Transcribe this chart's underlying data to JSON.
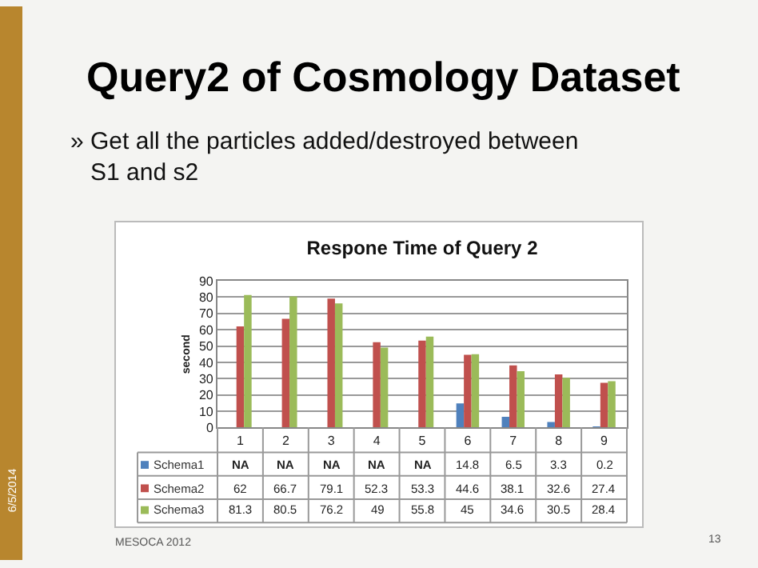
{
  "chart_data": {
    "type": "bar",
    "title": "Respone Time of Query 2",
    "ylabel": "second",
    "categories": [
      "1",
      "2",
      "3",
      "4",
      "5",
      "6",
      "7",
      "8",
      "9"
    ],
    "series": [
      {
        "name": "Schema1",
        "color": "#4f81bd",
        "values": [
          null,
          null,
          null,
          null,
          null,
          14.8,
          6.5,
          3.3,
          0.2
        ],
        "value_labels": [
          "NA",
          "NA",
          "NA",
          "NA",
          "NA",
          "14.8",
          "6.5",
          "3.3",
          "0.2"
        ]
      },
      {
        "name": "Schema2",
        "color": "#c0504d",
        "values": [
          62,
          66.7,
          79.1,
          52.3,
          53.3,
          44.6,
          38.1,
          32.6,
          27.4
        ],
        "value_labels": [
          "62",
          "66.7",
          "79.1",
          "52.3",
          "53.3",
          "44.6",
          "38.1",
          "32.6",
          "27.4"
        ]
      },
      {
        "name": "Schema3",
        "color": "#9bbb59",
        "values": [
          81.3,
          80.5,
          76.2,
          49,
          55.8,
          45,
          34.6,
          30.5,
          28.4
        ],
        "value_labels": [
          "81.3",
          "80.5",
          "76.2",
          "49",
          "55.8",
          "45",
          "34.6",
          "30.5",
          "28.4"
        ]
      }
    ],
    "ylim": [
      0,
      90
    ],
    "yticks": [
      0,
      10,
      20,
      30,
      40,
      50,
      60,
      70,
      80,
      90
    ],
    "grid": "y",
    "legend": "bottom",
    "annotations": [
      "Query2 of Cosmology Dataset",
      "» Get all the particles added/destroyed between S1 and s2",
      "6/5/2014",
      "MESOCA 2012",
      "13"
    ]
  }
}
